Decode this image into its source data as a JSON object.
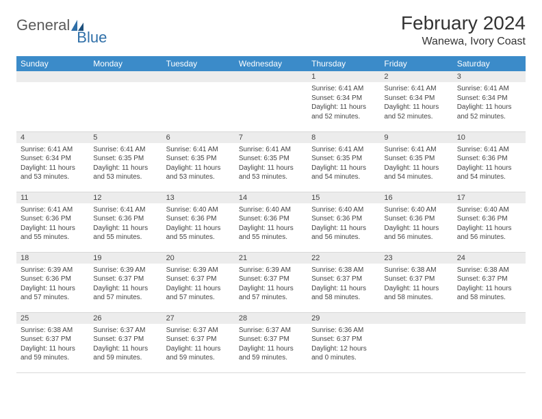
{
  "logo": {
    "word1": "General",
    "word2": "Blue"
  },
  "title": "February 2024",
  "location": "Wanewa, Ivory Coast",
  "columns": [
    "Sunday",
    "Monday",
    "Tuesday",
    "Wednesday",
    "Thursday",
    "Friday",
    "Saturday"
  ],
  "header_bg": "#3b8bc9",
  "header_fg": "#ffffff",
  "daynum_bg": "#ececec",
  "weeks": [
    [
      {
        "n": "",
        "lines": []
      },
      {
        "n": "",
        "lines": []
      },
      {
        "n": "",
        "lines": []
      },
      {
        "n": "",
        "lines": []
      },
      {
        "n": "1",
        "lines": [
          "Sunrise: 6:41 AM",
          "Sunset: 6:34 PM",
          "Daylight: 11 hours and 52 minutes."
        ]
      },
      {
        "n": "2",
        "lines": [
          "Sunrise: 6:41 AM",
          "Sunset: 6:34 PM",
          "Daylight: 11 hours and 52 minutes."
        ]
      },
      {
        "n": "3",
        "lines": [
          "Sunrise: 6:41 AM",
          "Sunset: 6:34 PM",
          "Daylight: 11 hours and 52 minutes."
        ]
      }
    ],
    [
      {
        "n": "4",
        "lines": [
          "Sunrise: 6:41 AM",
          "Sunset: 6:34 PM",
          "Daylight: 11 hours and 53 minutes."
        ]
      },
      {
        "n": "5",
        "lines": [
          "Sunrise: 6:41 AM",
          "Sunset: 6:35 PM",
          "Daylight: 11 hours and 53 minutes."
        ]
      },
      {
        "n": "6",
        "lines": [
          "Sunrise: 6:41 AM",
          "Sunset: 6:35 PM",
          "Daylight: 11 hours and 53 minutes."
        ]
      },
      {
        "n": "7",
        "lines": [
          "Sunrise: 6:41 AM",
          "Sunset: 6:35 PM",
          "Daylight: 11 hours and 53 minutes."
        ]
      },
      {
        "n": "8",
        "lines": [
          "Sunrise: 6:41 AM",
          "Sunset: 6:35 PM",
          "Daylight: 11 hours and 54 minutes."
        ]
      },
      {
        "n": "9",
        "lines": [
          "Sunrise: 6:41 AM",
          "Sunset: 6:35 PM",
          "Daylight: 11 hours and 54 minutes."
        ]
      },
      {
        "n": "10",
        "lines": [
          "Sunrise: 6:41 AM",
          "Sunset: 6:36 PM",
          "Daylight: 11 hours and 54 minutes."
        ]
      }
    ],
    [
      {
        "n": "11",
        "lines": [
          "Sunrise: 6:41 AM",
          "Sunset: 6:36 PM",
          "Daylight: 11 hours and 55 minutes."
        ]
      },
      {
        "n": "12",
        "lines": [
          "Sunrise: 6:41 AM",
          "Sunset: 6:36 PM",
          "Daylight: 11 hours and 55 minutes."
        ]
      },
      {
        "n": "13",
        "lines": [
          "Sunrise: 6:40 AM",
          "Sunset: 6:36 PM",
          "Daylight: 11 hours and 55 minutes."
        ]
      },
      {
        "n": "14",
        "lines": [
          "Sunrise: 6:40 AM",
          "Sunset: 6:36 PM",
          "Daylight: 11 hours and 55 minutes."
        ]
      },
      {
        "n": "15",
        "lines": [
          "Sunrise: 6:40 AM",
          "Sunset: 6:36 PM",
          "Daylight: 11 hours and 56 minutes."
        ]
      },
      {
        "n": "16",
        "lines": [
          "Sunrise: 6:40 AM",
          "Sunset: 6:36 PM",
          "Daylight: 11 hours and 56 minutes."
        ]
      },
      {
        "n": "17",
        "lines": [
          "Sunrise: 6:40 AM",
          "Sunset: 6:36 PM",
          "Daylight: 11 hours and 56 minutes."
        ]
      }
    ],
    [
      {
        "n": "18",
        "lines": [
          "Sunrise: 6:39 AM",
          "Sunset: 6:36 PM",
          "Daylight: 11 hours and 57 minutes."
        ]
      },
      {
        "n": "19",
        "lines": [
          "Sunrise: 6:39 AM",
          "Sunset: 6:37 PM",
          "Daylight: 11 hours and 57 minutes."
        ]
      },
      {
        "n": "20",
        "lines": [
          "Sunrise: 6:39 AM",
          "Sunset: 6:37 PM",
          "Daylight: 11 hours and 57 minutes."
        ]
      },
      {
        "n": "21",
        "lines": [
          "Sunrise: 6:39 AM",
          "Sunset: 6:37 PM",
          "Daylight: 11 hours and 57 minutes."
        ]
      },
      {
        "n": "22",
        "lines": [
          "Sunrise: 6:38 AM",
          "Sunset: 6:37 PM",
          "Daylight: 11 hours and 58 minutes."
        ]
      },
      {
        "n": "23",
        "lines": [
          "Sunrise: 6:38 AM",
          "Sunset: 6:37 PM",
          "Daylight: 11 hours and 58 minutes."
        ]
      },
      {
        "n": "24",
        "lines": [
          "Sunrise: 6:38 AM",
          "Sunset: 6:37 PM",
          "Daylight: 11 hours and 58 minutes."
        ]
      }
    ],
    [
      {
        "n": "25",
        "lines": [
          "Sunrise: 6:38 AM",
          "Sunset: 6:37 PM",
          "Daylight: 11 hours and 59 minutes."
        ]
      },
      {
        "n": "26",
        "lines": [
          "Sunrise: 6:37 AM",
          "Sunset: 6:37 PM",
          "Daylight: 11 hours and 59 minutes."
        ]
      },
      {
        "n": "27",
        "lines": [
          "Sunrise: 6:37 AM",
          "Sunset: 6:37 PM",
          "Daylight: 11 hours and 59 minutes."
        ]
      },
      {
        "n": "28",
        "lines": [
          "Sunrise: 6:37 AM",
          "Sunset: 6:37 PM",
          "Daylight: 11 hours and 59 minutes."
        ]
      },
      {
        "n": "29",
        "lines": [
          "Sunrise: 6:36 AM",
          "Sunset: 6:37 PM",
          "Daylight: 12 hours and 0 minutes."
        ]
      },
      {
        "n": "",
        "lines": []
      },
      {
        "n": "",
        "lines": []
      }
    ]
  ]
}
